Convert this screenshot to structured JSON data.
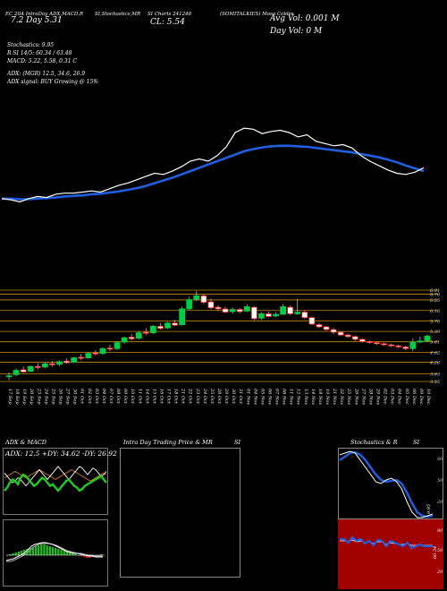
{
  "header": {
    "line1_left": "EC 20A IntraDay ADX,MACD,R",
    "line1_mid": "SI,Stochastics,MR",
    "line1_right": "SI Charts 241246",
    "symbol": "(SOMITALKIES) Mosa Coldre",
    "range_label": "7.2  Day  5.31",
    "close_label": "CL: 5.54",
    "avg_vol": "Avg Vol: 0.001  M",
    "day_vol": "Day Vol: 0   M",
    "stochastics": "Stochastics: 9.95",
    "rsi": "R                    SI 14/5: 60.34  / 63.48",
    "macd": "MACD: 5.22,  5.58,  0.31  C",
    "adx": "ADX:                        (MGR) 12.5,  34.6,  26.9",
    "adx_signal": "ADX  signal:                          BUY Growing @ 15%"
  },
  "colors": {
    "background": "#000000",
    "up": "#00cc44",
    "down": "#ff2222",
    "ma": "#1f5fe0",
    "price_line": "#ffffff",
    "level": "#c88a1a",
    "stoch_bottom_bg": "#a00000"
  },
  "price_levels": [
    "6.91",
    "6.76",
    "6.55",
    "6.16",
    "5.78",
    "5.39",
    "5.01",
    "4.62",
    "4.26",
    "3.83",
    "3.55"
  ],
  "dates": [
    "17 Sep",
    "18 Sep",
    "19 Sep",
    "20 Sep",
    "23 Sep",
    "24 Sep",
    "25 Sep",
    "26 Sep",
    "27 Sep",
    "30 Sep",
    "01 Oct",
    "02 Oct",
    "03 Oct",
    "04 Oct",
    "07 Oct",
    "08 Oct",
    "09 Oct",
    "10 Oct",
    "11 Oct",
    "14 Oct",
    "15 Oct",
    "16 Oct",
    "17 Oct",
    "18 Oct",
    "21 Oct",
    "22 Oct",
    "23 Oct",
    "24 Oct",
    "25 Oct",
    "28 Oct",
    "29 Oct",
    "30 Oct",
    "31 Oct",
    "01 Nov",
    "04 Nov",
    "05 Nov",
    "06 Nov",
    "07 Nov",
    "08 Nov",
    "11 Nov",
    "12 Nov",
    "13 Nov",
    "14 Nov",
    "18 Nov",
    "19 Nov",
    "21 Nov",
    "22 Nov",
    "25 Nov",
    "26 Nov",
    "27 Nov",
    "28 Nov",
    "29 Nov",
    "02 Dec",
    "03 Dec",
    "04 Dec",
    "05 Dec",
    "06 Dec",
    "09 Dec",
    "10 Dec"
  ],
  "panels": {
    "adx_title": "ADX  & MACD",
    "adx_values": "ADX: 12.5  +DY: 34.62  -DY: 26.92",
    "mr_title": "Intra  Day Trading Price  & MR",
    "mr_suffix": "SI",
    "stoch_title": "Stochastics & R",
    "stoch_suffix": "SI",
    "stoch_ticks": [
      "80",
      "50",
      "20"
    ],
    "stoch_value": "9.95",
    "rsi_ticks": [
      "80",
      "50",
      "20"
    ],
    "rsi_value": "60.34"
  },
  "chart_data": {
    "type": "candlestick",
    "title": "(SOMITALKIES) Mosa Coldre",
    "ylim": [
      3.55,
      6.91
    ],
    "candles": [
      {
        "o": 3.72,
        "h": 3.88,
        "l": 3.6,
        "c": 3.76
      },
      {
        "o": 3.8,
        "h": 4.02,
        "l": 3.74,
        "c": 3.96
      },
      {
        "o": 3.98,
        "h": 4.1,
        "l": 3.86,
        "c": 3.9
      },
      {
        "o": 3.92,
        "h": 4.14,
        "l": 3.9,
        "c": 4.1
      },
      {
        "o": 4.1,
        "h": 4.22,
        "l": 4.0,
        "c": 4.06
      },
      {
        "o": 4.08,
        "h": 4.24,
        "l": 4.04,
        "c": 4.2
      },
      {
        "o": 4.2,
        "h": 4.3,
        "l": 4.1,
        "c": 4.16
      },
      {
        "o": 4.18,
        "h": 4.32,
        "l": 4.12,
        "c": 4.28
      },
      {
        "o": 4.3,
        "h": 4.4,
        "l": 4.2,
        "c": 4.24
      },
      {
        "o": 4.26,
        "h": 4.46,
        "l": 4.22,
        "c": 4.42
      },
      {
        "o": 4.44,
        "h": 4.56,
        "l": 4.34,
        "c": 4.4
      },
      {
        "o": 4.42,
        "h": 4.62,
        "l": 4.38,
        "c": 4.58
      },
      {
        "o": 4.6,
        "h": 4.7,
        "l": 4.5,
        "c": 4.56
      },
      {
        "o": 4.58,
        "h": 4.8,
        "l": 4.54,
        "c": 4.76
      },
      {
        "o": 4.78,
        "h": 4.9,
        "l": 4.66,
        "c": 4.74
      },
      {
        "o": 4.76,
        "h": 5.02,
        "l": 4.7,
        "c": 4.98
      },
      {
        "o": 5.0,
        "h": 5.2,
        "l": 4.94,
        "c": 5.16
      },
      {
        "o": 5.18,
        "h": 5.3,
        "l": 5.06,
        "c": 5.12
      },
      {
        "o": 5.14,
        "h": 5.4,
        "l": 5.1,
        "c": 5.34
      },
      {
        "o": 5.36,
        "h": 5.5,
        "l": 5.26,
        "c": 5.32
      },
      {
        "o": 5.34,
        "h": 5.62,
        "l": 5.3,
        "c": 5.58
      },
      {
        "o": 5.58,
        "h": 5.7,
        "l": 5.46,
        "c": 5.5
      },
      {
        "o": 5.52,
        "h": 5.74,
        "l": 5.48,
        "c": 5.7
      },
      {
        "o": 5.7,
        "h": 5.82,
        "l": 5.58,
        "c": 5.62
      },
      {
        "o": 5.64,
        "h": 6.3,
        "l": 5.6,
        "c": 6.22
      },
      {
        "o": 6.22,
        "h": 6.66,
        "l": 6.18,
        "c": 6.56
      },
      {
        "o": 6.58,
        "h": 6.88,
        "l": 6.5,
        "c": 6.7
      },
      {
        "o": 6.7,
        "h": 6.76,
        "l": 6.4,
        "c": 6.46
      },
      {
        "o": 6.48,
        "h": 6.6,
        "l": 6.2,
        "c": 6.26
      },
      {
        "o": 6.28,
        "h": 6.36,
        "l": 6.14,
        "c": 6.22
      },
      {
        "o": 6.22,
        "h": 6.3,
        "l": 6.06,
        "c": 6.1
      },
      {
        "o": 6.12,
        "h": 6.28,
        "l": 6.04,
        "c": 6.2
      },
      {
        "o": 6.2,
        "h": 6.26,
        "l": 6.06,
        "c": 6.12
      },
      {
        "o": 6.14,
        "h": 6.38,
        "l": 6.1,
        "c": 6.3
      },
      {
        "o": 6.28,
        "h": 6.32,
        "l": 5.8,
        "c": 5.86
      },
      {
        "o": 5.88,
        "h": 6.1,
        "l": 5.82,
        "c": 6.04
      },
      {
        "o": 6.04,
        "h": 6.12,
        "l": 5.9,
        "c": 5.94
      },
      {
        "o": 5.96,
        "h": 6.1,
        "l": 5.92,
        "c": 6.02
      },
      {
        "o": 6.02,
        "h": 6.4,
        "l": 6.0,
        "c": 6.3
      },
      {
        "o": 6.28,
        "h": 6.34,
        "l": 5.98,
        "c": 6.04
      },
      {
        "o": 6.04,
        "h": 6.6,
        "l": 6.0,
        "c": 6.1
      },
      {
        "o": 6.1,
        "h": 6.16,
        "l": 5.86,
        "c": 5.9
      },
      {
        "o": 5.9,
        "h": 5.94,
        "l": 5.62,
        "c": 5.66
      },
      {
        "o": 5.64,
        "h": 5.7,
        "l": 5.52,
        "c": 5.56
      },
      {
        "o": 5.56,
        "h": 5.6,
        "l": 5.42,
        "c": 5.46
      },
      {
        "o": 5.46,
        "h": 5.52,
        "l": 5.3,
        "c": 5.36
      },
      {
        "o": 5.36,
        "h": 5.4,
        "l": 5.22,
        "c": 5.26
      },
      {
        "o": 5.26,
        "h": 5.3,
        "l": 5.16,
        "c": 5.2
      },
      {
        "o": 5.2,
        "h": 5.24,
        "l": 5.04,
        "c": 5.1
      },
      {
        "o": 5.1,
        "h": 5.14,
        "l": 4.98,
        "c": 5.02
      },
      {
        "o": 5.02,
        "h": 5.06,
        "l": 4.94,
        "c": 4.98
      },
      {
        "o": 4.98,
        "h": 5.02,
        "l": 4.9,
        "c": 4.94
      },
      {
        "o": 4.94,
        "h": 4.98,
        "l": 4.86,
        "c": 4.9
      },
      {
        "o": 4.9,
        "h": 4.94,
        "l": 4.82,
        "c": 4.86
      },
      {
        "o": 4.86,
        "h": 4.9,
        "l": 4.78,
        "c": 4.82
      },
      {
        "o": 4.82,
        "h": 4.86,
        "l": 4.7,
        "c": 4.76
      },
      {
        "o": 4.76,
        "h": 5.14,
        "l": 4.66,
        "c": 5.0
      },
      {
        "o": 5.0,
        "h": 5.2,
        "l": 4.96,
        "c": 5.04
      },
      {
        "o": 5.04,
        "h": 5.28,
        "l": 5.0,
        "c": 5.22
      }
    ],
    "price_line": [
      4.62,
      4.6,
      4.56,
      4.62,
      4.66,
      4.64,
      4.7,
      4.72,
      4.72,
      4.74,
      4.76,
      4.74,
      4.8,
      4.86,
      4.9,
      4.96,
      5.02,
      5.08,
      5.06,
      5.12,
      5.2,
      5.3,
      5.34,
      5.3,
      5.4,
      5.56,
      5.82,
      5.9,
      5.88,
      5.8,
      5.84,
      5.86,
      5.82,
      5.74,
      5.78,
      5.66,
      5.62,
      5.58,
      5.6,
      5.54,
      5.4,
      5.3,
      5.22,
      5.14,
      5.08,
      5.06,
      5.1,
      5.18
    ],
    "ma_line": [
      4.62,
      4.62,
      4.61,
      4.61,
      4.62,
      4.63,
      4.64,
      4.66,
      4.67,
      4.68,
      4.7,
      4.71,
      4.73,
      4.75,
      4.78,
      4.81,
      4.85,
      4.9,
      4.95,
      5.0,
      5.06,
      5.12,
      5.18,
      5.24,
      5.3,
      5.36,
      5.42,
      5.48,
      5.52,
      5.55,
      5.57,
      5.58,
      5.58,
      5.57,
      5.56,
      5.54,
      5.52,
      5.5,
      5.48,
      5.46,
      5.43,
      5.4,
      5.37,
      5.33,
      5.28,
      5.22,
      5.17,
      5.12
    ]
  }
}
